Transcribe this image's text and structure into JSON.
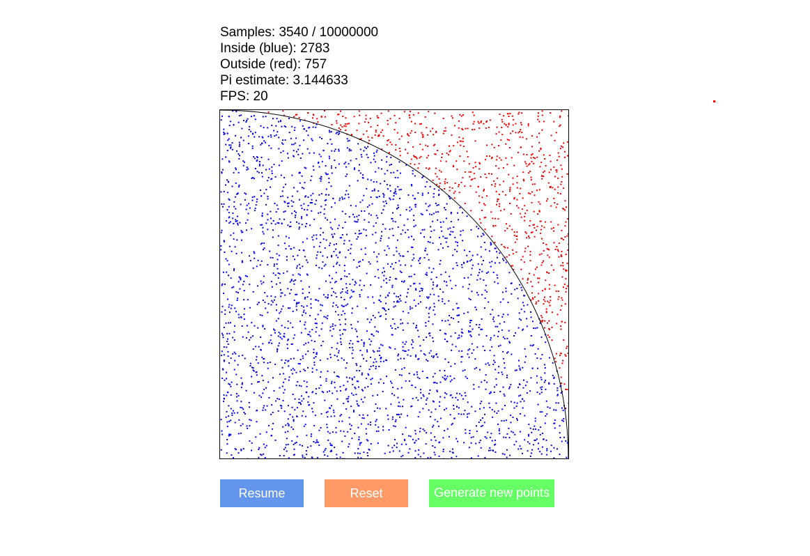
{
  "stats": {
    "samples_line": "Samples: 3540 / 10000000",
    "inside_line": "Inside (blue): 2783",
    "outside_line": "Outside (red): 757",
    "pi_line": "Pi estimate: 3.144633",
    "fps_line": "FPS: 20"
  },
  "simulation": {
    "samples": 3540,
    "max_samples": 10000000,
    "inside": 2783,
    "outside": 757,
    "pi_estimate": 3.144633,
    "fps": 20,
    "inside_color": "#0000ee",
    "outside_color": "#ee0000",
    "boundary_color": "#000000"
  },
  "buttons": {
    "resume_label": "Resume",
    "reset_label": "Reset",
    "generate_label": "Generate new points",
    "resume_color": "#6495ed",
    "reset_color": "#ff9966",
    "generate_color": "#66ff66"
  }
}
